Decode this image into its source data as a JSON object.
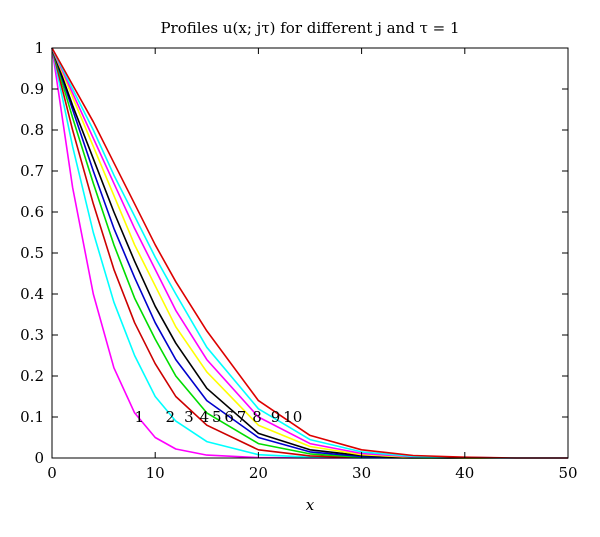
{
  "chart_data": {
    "type": "line",
    "title": "Profiles u(x; jτ) for different j and τ = 1",
    "xlabel": "x",
    "ylabel": "",
    "xlim": [
      0,
      50
    ],
    "ylim": [
      0,
      1
    ],
    "grid": false,
    "x_ticks": [
      "0",
      "10",
      "20",
      "30",
      "40",
      "50"
    ],
    "y_ticks": [
      "0",
      "0.1",
      "0.2",
      "0.3",
      "0.4",
      "0.5",
      "0.6",
      "0.7",
      "0.8",
      "0.9",
      "1"
    ],
    "x": [
      0,
      2,
      4,
      6,
      8,
      10,
      12,
      15,
      20,
      25,
      30,
      35,
      40,
      45,
      50
    ],
    "series": [
      {
        "label": "1",
        "color": "#ff00ff",
        "values": [
          1.0,
          0.66,
          0.4,
          0.22,
          0.11,
          0.05,
          0.022,
          0.007,
          0.001,
          0.0,
          0.0,
          0.0,
          0.0,
          0.0,
          0.0
        ]
      },
      {
        "label": "2",
        "color": "#00ffff",
        "values": [
          1.0,
          0.76,
          0.55,
          0.38,
          0.25,
          0.15,
          0.09,
          0.04,
          0.008,
          0.002,
          0.0,
          0.0,
          0.0,
          0.0,
          0.0
        ]
      },
      {
        "label": "3",
        "color": "#cc0000",
        "values": [
          1.0,
          0.8,
          0.62,
          0.46,
          0.33,
          0.23,
          0.15,
          0.08,
          0.02,
          0.005,
          0.001,
          0.0,
          0.0,
          0.0,
          0.0
        ]
      },
      {
        "label": "4",
        "color": "#00dd00",
        "values": [
          1.0,
          0.83,
          0.67,
          0.52,
          0.39,
          0.29,
          0.2,
          0.11,
          0.035,
          0.01,
          0.002,
          0.0,
          0.0,
          0.0,
          0.0
        ]
      },
      {
        "label": "5",
        "color": "#0000cc",
        "values": [
          1.0,
          0.85,
          0.7,
          0.56,
          0.44,
          0.33,
          0.24,
          0.14,
          0.05,
          0.015,
          0.004,
          0.001,
          0.0,
          0.0,
          0.0
        ]
      },
      {
        "label": "6",
        "color": "#000000",
        "values": [
          1.0,
          0.86,
          0.73,
          0.6,
          0.48,
          0.37,
          0.28,
          0.17,
          0.06,
          0.02,
          0.006,
          0.001,
          0.0,
          0.0,
          0.0
        ]
      },
      {
        "label": "7",
        "color": "#ffff00",
        "values": [
          1.0,
          0.88,
          0.76,
          0.64,
          0.52,
          0.42,
          0.32,
          0.21,
          0.08,
          0.028,
          0.008,
          0.002,
          0.0,
          0.0,
          0.0
        ]
      },
      {
        "label": "8",
        "color": "#ff00ff",
        "values": [
          1.0,
          0.89,
          0.78,
          0.67,
          0.56,
          0.46,
          0.36,
          0.24,
          0.1,
          0.035,
          0.011,
          0.003,
          0.001,
          0.0,
          0.0
        ]
      },
      {
        "label": "9",
        "color": "#00ffff",
        "values": [
          1.0,
          0.9,
          0.8,
          0.69,
          0.59,
          0.49,
          0.4,
          0.27,
          0.12,
          0.045,
          0.015,
          0.004,
          0.001,
          0.0,
          0.0
        ]
      },
      {
        "label": "10",
        "color": "#dd0000",
        "values": [
          1.0,
          0.91,
          0.82,
          0.72,
          0.62,
          0.52,
          0.43,
          0.31,
          0.14,
          0.055,
          0.02,
          0.006,
          0.002,
          0.0,
          0.0
        ]
      }
    ]
  }
}
